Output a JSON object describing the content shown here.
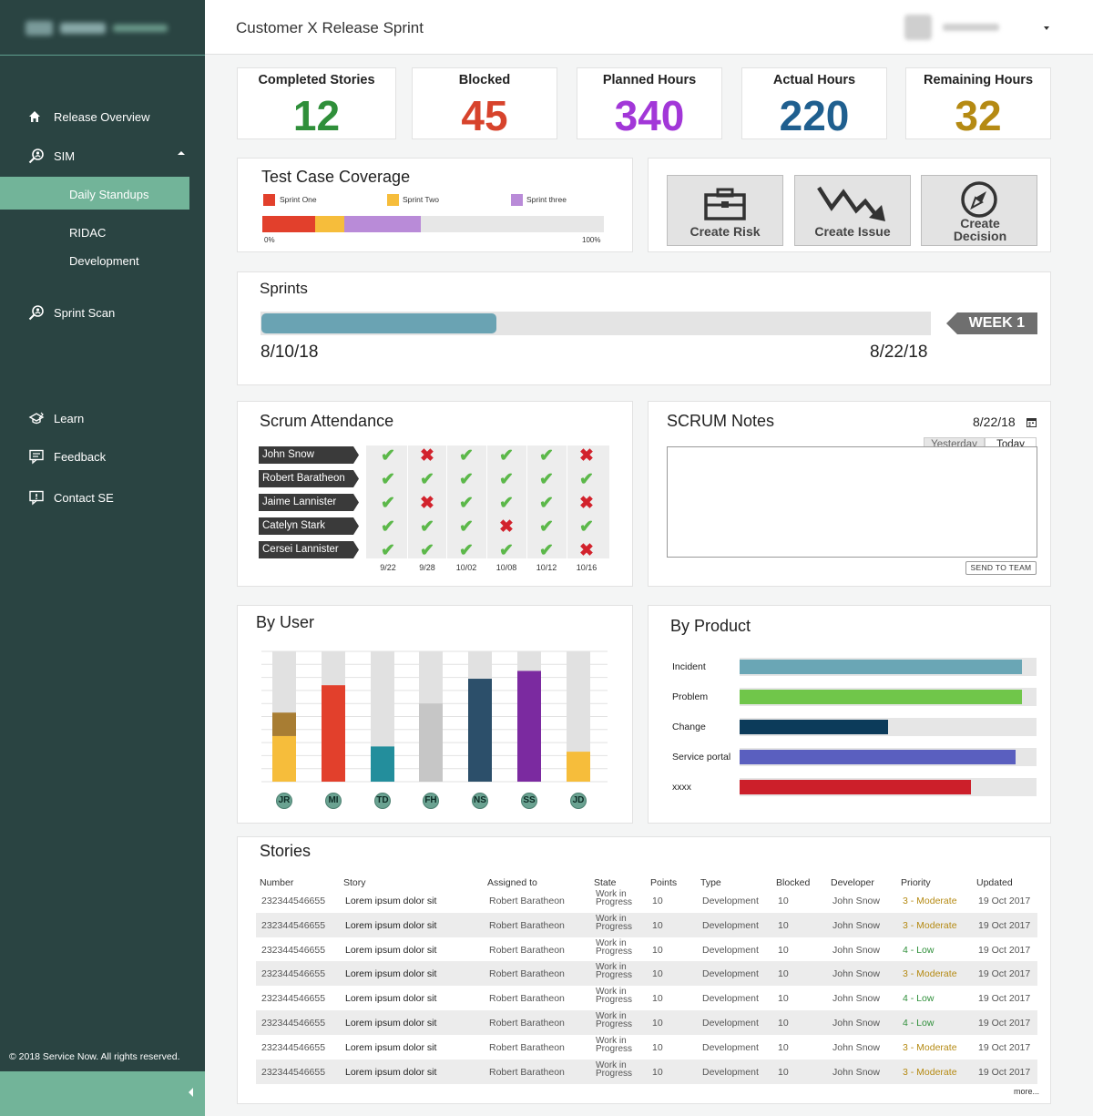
{
  "sidebar": {
    "nav": [
      {
        "label": "Release Overview",
        "icon": "home-icon"
      },
      {
        "label": "SIM",
        "icon": "search-person-icon"
      },
      {
        "label": "Sprint Scan",
        "icon": "search-person-icon"
      },
      {
        "label": "Learn",
        "icon": "learn-icon"
      },
      {
        "label": "Feedback",
        "icon": "feedback-icon"
      },
      {
        "label": "Contact SE",
        "icon": "chat-alert-icon"
      }
    ],
    "sim_sub": [
      "Daily Standups",
      "RIDAC",
      "Development"
    ],
    "active_item": "Daily Standups",
    "copyright": "© 2018 Service Now. All rights reserved."
  },
  "header": {
    "title": "Customer X Release Sprint"
  },
  "kpis": [
    {
      "label": "Completed Stories",
      "value": "12",
      "color": "#2f8f3a"
    },
    {
      "label": "Blocked",
      "value": "45",
      "color": "#d7432c"
    },
    {
      "label": "Planned Hours",
      "value": "340",
      "color": "#a237d8"
    },
    {
      "label": "Actual Hours",
      "value": "220",
      "color": "#1f5f8f"
    },
    {
      "label": "Remaining Hours",
      "value": "32",
      "color": "#b58a13"
    }
  ],
  "coverage": {
    "title": "Test Case Coverage",
    "legend": [
      {
        "name": "Sprint One",
        "color": "#e2402c"
      },
      {
        "name": "Sprint Two",
        "color": "#f6bd3b"
      },
      {
        "name": "Sprint three",
        "color": "#b98bd8"
      }
    ],
    "segments_percent": [
      15.5,
      8.5,
      22.5
    ],
    "axis_min": "0%",
    "axis_max": "100%"
  },
  "actions": [
    "Create Risk",
    "Create Issue",
    "Create Decision"
  ],
  "sprints": {
    "title": "Sprints",
    "progress_percent": 35,
    "start_date": "8/10/18",
    "end_date": "8/22/18",
    "week_label": "WEEK 1"
  },
  "attendance": {
    "title": "Scrum Attendance",
    "dates": [
      "9/22",
      "9/28",
      "10/02",
      "10/08",
      "10/12",
      "10/16"
    ],
    "people": [
      {
        "name": "John Snow",
        "marks": [
          1,
          0,
          1,
          1,
          1,
          0
        ]
      },
      {
        "name": "Robert Baratheon",
        "marks": [
          1,
          1,
          1,
          1,
          1,
          1
        ]
      },
      {
        "name": "Jaime Lannister",
        "marks": [
          1,
          0,
          1,
          1,
          1,
          0
        ]
      },
      {
        "name": "Catelyn Stark",
        "marks": [
          1,
          1,
          1,
          0,
          1,
          1
        ]
      },
      {
        "name": "Cersei Lannister",
        "marks": [
          1,
          1,
          1,
          1,
          1,
          0
        ]
      }
    ]
  },
  "notes": {
    "title": "SCRUM Notes",
    "date": "8/22/18",
    "tabs": [
      "Yesterday",
      "Today"
    ],
    "active_tab": "Today",
    "value": "",
    "send_label": "SEND TO TEAM"
  },
  "by_user": {
    "title": "By User",
    "max": 100,
    "users": [
      {
        "initials": "JR",
        "segments": [
          {
            "value": 35,
            "color": "#f6bd3b"
          },
          {
            "value": 18,
            "color": "#a87d33"
          }
        ]
      },
      {
        "initials": "MI",
        "segments": [
          {
            "value": 74,
            "color": "#e2402c"
          }
        ]
      },
      {
        "initials": "TD",
        "segments": [
          {
            "value": 27,
            "color": "#238e9c"
          }
        ]
      },
      {
        "initials": "FH",
        "segments": [
          {
            "value": 60,
            "color": "#c6c6c6"
          }
        ]
      },
      {
        "initials": "NS",
        "segments": [
          {
            "value": 79,
            "color": "#2c4f6a"
          }
        ]
      },
      {
        "initials": "SS",
        "segments": [
          {
            "value": 85,
            "color": "#7b2aa0"
          }
        ]
      },
      {
        "initials": "JD",
        "segments": [
          {
            "value": 23,
            "color": "#f6bd3b"
          }
        ]
      }
    ]
  },
  "by_product": {
    "title": "By Product",
    "items": [
      {
        "label": "Incident",
        "value": 95,
        "color": "#6aa6b5"
      },
      {
        "label": "Problem",
        "value": 95,
        "color": "#70c64a"
      },
      {
        "label": "Change",
        "value": 50,
        "color": "#0c3b5a"
      },
      {
        "label": "Service portal",
        "value": 93,
        "color": "#5a5fbf"
      },
      {
        "label": "xxxx",
        "value": 78,
        "color": "#cc1f2a"
      }
    ]
  },
  "stories": {
    "title": "Stories",
    "columns": [
      "Number",
      "Story",
      "Assigned to",
      "State",
      "Points",
      "Type",
      "Blocked",
      "Developer",
      "Priority",
      "Updated"
    ],
    "rows": [
      [
        "232344546655",
        "Lorem ipsum dolor sit",
        "Robert Baratheon",
        "Work in Progress",
        "10",
        "Development",
        "10",
        "John Snow",
        "3 - Moderate",
        "19 Oct 2017"
      ],
      [
        "232344546655",
        "Lorem ipsum dolor sit",
        "Robert Baratheon",
        "Work in Progress",
        "10",
        "Development",
        "10",
        "John Snow",
        "3 - Moderate",
        "19 Oct 2017"
      ],
      [
        "232344546655",
        "Lorem ipsum dolor sit",
        "Robert Baratheon",
        "Work in Progress",
        "10",
        "Development",
        "10",
        "John Snow",
        "4 - Low",
        "19 Oct 2017"
      ],
      [
        "232344546655",
        "Lorem ipsum dolor sit",
        "Robert Baratheon",
        "Work in Progress",
        "10",
        "Development",
        "10",
        "John Snow",
        "3 - Moderate",
        "19 Oct 2017"
      ],
      [
        "232344546655",
        "Lorem ipsum dolor sit",
        "Robert Baratheon",
        "Work in Progress",
        "10",
        "Development",
        "10",
        "John Snow",
        "4 - Low",
        "19 Oct 2017"
      ],
      [
        "232344546655",
        "Lorem ipsum dolor sit",
        "Robert Baratheon",
        "Work in Progress",
        "10",
        "Development",
        "10",
        "John Snow",
        "4 - Low",
        "19 Oct 2017"
      ],
      [
        "232344546655",
        "Lorem ipsum dolor sit",
        "Robert Baratheon",
        "Work in Progress",
        "10",
        "Development",
        "10",
        "John Snow",
        "3 - Moderate",
        "19 Oct 2017"
      ],
      [
        "232344546655",
        "Lorem ipsum dolor sit",
        "Robert Baratheon",
        "Work in Progress",
        "10",
        "Development",
        "10",
        "John Snow",
        "3 - Moderate",
        "19 Oct 2017"
      ]
    ],
    "more_label": "more...",
    "priority_colors": {
      "moderate": "#b58a13",
      "low": "#2f8f3a"
    }
  }
}
